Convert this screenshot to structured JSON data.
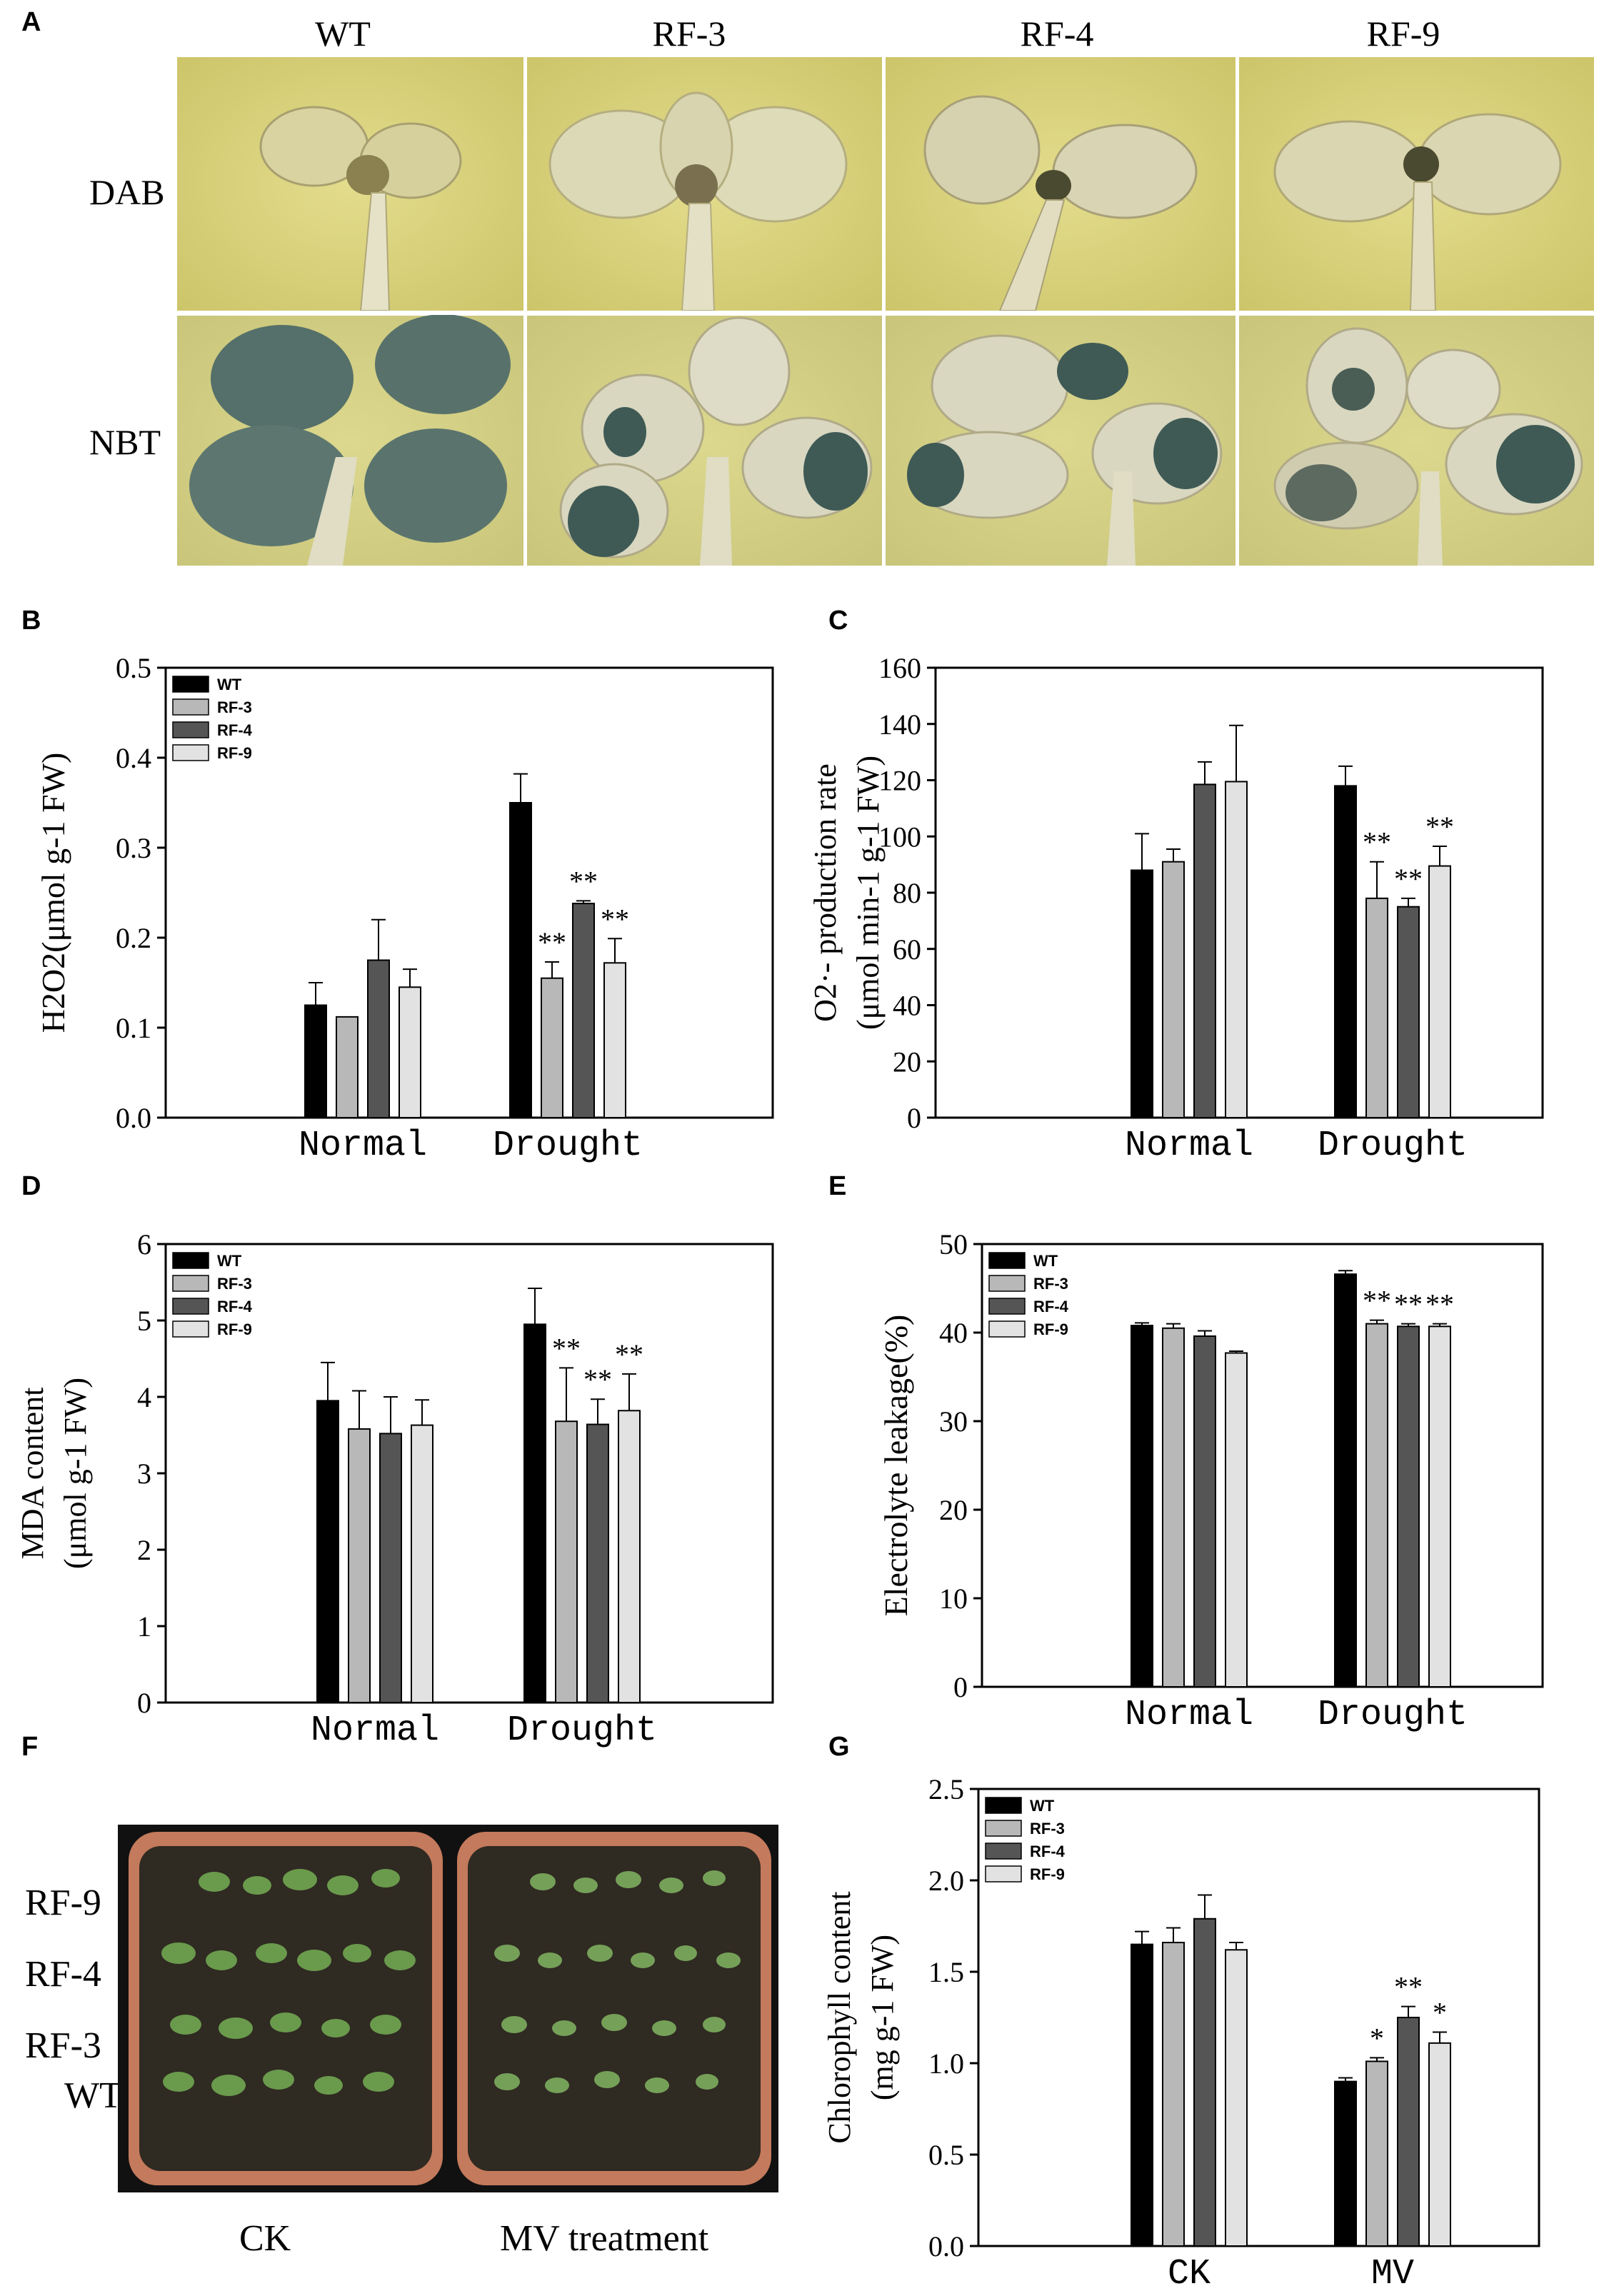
{
  "panels": {
    "A": "A",
    "B": "B",
    "C": "C",
    "D": "D",
    "E": "E",
    "F": "F",
    "G": "G"
  },
  "panel_a": {
    "columns": [
      "WT",
      "RF-3",
      "RF-4",
      "RF-9"
    ],
    "rows": [
      "DAB",
      "NBT"
    ]
  },
  "panel_f": {
    "row_labels": [
      "RF-9",
      "RF-4",
      "RF-3",
      "WT"
    ],
    "pot_labels": [
      "CK",
      "MV treatment"
    ]
  },
  "colors": {
    "WT": "#000000",
    "RF-3": "#b8b8b8",
    "RF-4": "#555555",
    "RF-9": "#e2e2e2",
    "dab_bg": "#d9d37a",
    "nbt_bg": "#d4d186",
    "stain_dark": "#3f5a55"
  },
  "chart_data": [
    {
      "id": "B",
      "type": "bar",
      "categories": [
        "Normal",
        "Drought"
      ],
      "ylabel": "H2O2(μmol g-1 FW)",
      "ylim": [
        0,
        0.5
      ],
      "yticks": [
        "0.0",
        "0.1",
        "0.2",
        "0.3",
        "0.4",
        "0.5"
      ],
      "legend": [
        "WT",
        "RF-3",
        "RF-4",
        "RF-9"
      ],
      "legend_position": "top-left",
      "series": [
        {
          "name": "WT",
          "values": [
            0.125,
            0.35
          ],
          "errors": [
            0.025,
            0.032
          ],
          "marks": [
            "",
            ""
          ]
        },
        {
          "name": "RF-3",
          "values": [
            0.112,
            0.155
          ],
          "errors": [
            0.0,
            0.018
          ],
          "marks": [
            "",
            "**"
          ]
        },
        {
          "name": "RF-4",
          "values": [
            0.175,
            0.238
          ],
          "errors": [
            0.045,
            0.003
          ],
          "marks": [
            "",
            "**"
          ]
        },
        {
          "name": "RF-9",
          "values": [
            0.145,
            0.172
          ],
          "errors": [
            0.02,
            0.027
          ],
          "marks": [
            "",
            "**"
          ]
        }
      ]
    },
    {
      "id": "C",
      "type": "bar",
      "categories": [
        "Normal",
        "Drought"
      ],
      "ylabel_top": "O2·- production rate",
      "ylabel_bottom": "(μmol min-1 g-1 FW)",
      "ylim": [
        0,
        160
      ],
      "yticks": [
        "0",
        "20",
        "40",
        "60",
        "80",
        "100",
        "120",
        "140",
        "160"
      ],
      "series": [
        {
          "name": "WT",
          "values": [
            88,
            118
          ],
          "errors": [
            13,
            7
          ],
          "marks": [
            "",
            ""
          ]
        },
        {
          "name": "RF-3",
          "values": [
            91,
            78
          ],
          "errors": [
            4.5,
            13
          ],
          "marks": [
            "",
            "**"
          ]
        },
        {
          "name": "RF-4",
          "values": [
            118.5,
            75
          ],
          "errors": [
            8,
            3
          ],
          "marks": [
            "",
            "**"
          ]
        },
        {
          "name": "RF-9",
          "values": [
            119.5,
            89.5
          ],
          "errors": [
            20,
            7
          ],
          "marks": [
            "",
            "**"
          ]
        }
      ]
    },
    {
      "id": "D",
      "type": "bar",
      "categories": [
        "Normal",
        "Drought"
      ],
      "ylabel_top": "MDA content",
      "ylabel_bottom": "(μmol g-1 FW)",
      "ylim": [
        0,
        6
      ],
      "yticks": [
        "0",
        "1",
        "2",
        "3",
        "4",
        "5",
        "6"
      ],
      "legend": [
        "WT",
        "RF-3",
        "RF-4",
        "RF-9"
      ],
      "legend_position": "top-left",
      "series": [
        {
          "name": "WT",
          "values": [
            3.95,
            4.95
          ],
          "errors": [
            0.5,
            0.47
          ],
          "marks": [
            "",
            ""
          ]
        },
        {
          "name": "RF-3",
          "values": [
            3.58,
            3.68
          ],
          "errors": [
            0.5,
            0.7
          ],
          "marks": [
            "",
            "**"
          ]
        },
        {
          "name": "RF-4",
          "values": [
            3.52,
            3.64
          ],
          "errors": [
            0.48,
            0.33
          ],
          "marks": [
            "",
            "**"
          ]
        },
        {
          "name": "RF-9",
          "values": [
            3.63,
            3.82
          ],
          "errors": [
            0.33,
            0.48
          ],
          "marks": [
            "",
            "**"
          ]
        }
      ]
    },
    {
      "id": "E",
      "type": "bar",
      "categories": [
        "Normal",
        "Drought"
      ],
      "ylabel": "Electrolyte leakage(%)",
      "ylim": [
        0,
        50
      ],
      "yticks": [
        "0",
        "10",
        "20",
        "30",
        "40",
        "50"
      ],
      "legend": [
        "WT",
        "RF-3",
        "RF-4",
        "RF-9"
      ],
      "legend_position": "top-left",
      "series": [
        {
          "name": "WT",
          "values": [
            40.8,
            46.6
          ],
          "errors": [
            0.3,
            0.4
          ],
          "marks": [
            "",
            ""
          ]
        },
        {
          "name": "RF-3",
          "values": [
            40.5,
            41.0
          ],
          "errors": [
            0.5,
            0.4
          ],
          "marks": [
            "",
            "**"
          ]
        },
        {
          "name": "RF-4",
          "values": [
            39.6,
            40.7
          ],
          "errors": [
            0.6,
            0.3
          ],
          "marks": [
            "",
            "**"
          ]
        },
        {
          "name": "RF-9",
          "values": [
            37.7,
            40.7
          ],
          "errors": [
            0.2,
            0.3
          ],
          "marks": [
            "",
            "**"
          ]
        }
      ]
    },
    {
      "id": "G",
      "type": "bar",
      "categories": [
        "CK",
        "MV"
      ],
      "ylabel_top": "Chlorophyll content",
      "ylabel_bottom": "(mg g-1 FW)",
      "ylim": [
        0,
        2.5
      ],
      "yticks": [
        "0.0",
        "0.5",
        "1.0",
        "1.5",
        "2.0",
        "2.5"
      ],
      "legend": [
        "WT",
        "RF-3",
        "RF-4",
        "RF-9"
      ],
      "legend_position": "top-left",
      "series": [
        {
          "name": "WT",
          "values": [
            1.65,
            0.9
          ],
          "errors": [
            0.07,
            0.02
          ],
          "marks": [
            "",
            ""
          ]
        },
        {
          "name": "RF-3",
          "values": [
            1.66,
            1.01
          ],
          "errors": [
            0.08,
            0.02
          ],
          "marks": [
            "",
            "*"
          ]
        },
        {
          "name": "RF-4",
          "values": [
            1.79,
            1.25
          ],
          "errors": [
            0.13,
            0.06
          ],
          "marks": [
            "",
            "**"
          ]
        },
        {
          "name": "RF-9",
          "values": [
            1.62,
            1.11
          ],
          "errors": [
            0.04,
            0.06
          ],
          "marks": [
            "",
            "*"
          ]
        }
      ]
    }
  ]
}
